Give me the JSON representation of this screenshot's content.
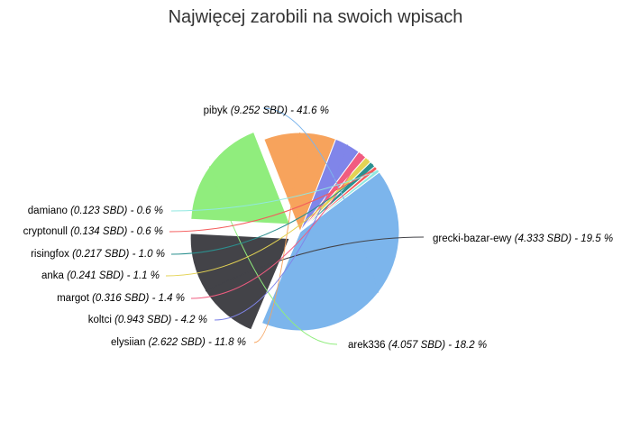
{
  "chart_data": {
    "type": "pie",
    "title": "Najwięcej zarobili na swoich wpisach",
    "unit": "SBD",
    "slices": [
      {
        "name": "pibyk",
        "value": 9.252,
        "value_label": "(9.252 SBD) - 41.6 %",
        "percent": 41.6,
        "color": "#7cb5ec",
        "exploded": false
      },
      {
        "name": "grecki-bazar-ewy",
        "value": 4.333,
        "value_label": "(4.333 SBD) - 19.5 %",
        "percent": 19.5,
        "color": "#434348",
        "exploded": true
      },
      {
        "name": "arek336",
        "value": 4.057,
        "value_label": "(4.057 SBD) - 18.2 %",
        "percent": 18.2,
        "color": "#90ed7d",
        "exploded": true
      },
      {
        "name": "elysiian",
        "value": 2.622,
        "value_label": "(2.622 SBD) - 11.8 %",
        "percent": 11.8,
        "color": "#f7a35c",
        "exploded": false
      },
      {
        "name": "koltci",
        "value": 0.943,
        "value_label": "(0.943 SBD) - 4.2 %",
        "percent": 4.2,
        "color": "#8085e9",
        "exploded": false
      },
      {
        "name": "margot",
        "value": 0.316,
        "value_label": "(0.316 SBD) - 1.4 %",
        "percent": 1.4,
        "color": "#f15c80",
        "exploded": false
      },
      {
        "name": "anka",
        "value": 0.241,
        "value_label": "(0.241 SBD) - 1.1 %",
        "percent": 1.1,
        "color": "#e4d354",
        "exploded": false
      },
      {
        "name": "risingfox",
        "value": 0.217,
        "value_label": "(0.217 SBD) - 1.0 %",
        "percent": 1.0,
        "color": "#2b908f",
        "exploded": false
      },
      {
        "name": "cryptonull",
        "value": 0.134,
        "value_label": "(0.134 SBD) - 0.6 %",
        "percent": 0.6,
        "color": "#f45b5b",
        "exploded": false
      },
      {
        "name": "damiano",
        "value": 0.123,
        "value_label": "(0.123 SBD) - 0.6 %",
        "percent": 0.6,
        "color": "#91e8e1",
        "exploded": false
      }
    ]
  }
}
